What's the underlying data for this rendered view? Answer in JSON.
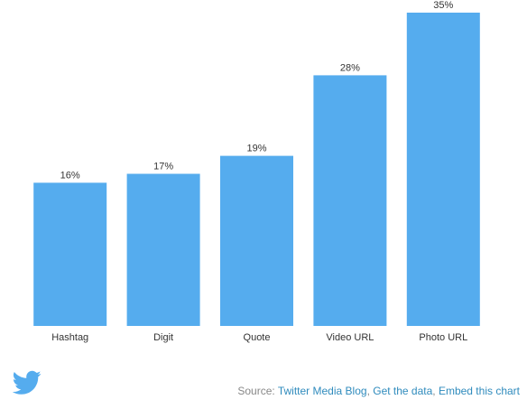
{
  "chart_data": {
    "type": "bar",
    "categories": [
      "Hashtag",
      "Digit",
      "Quote",
      "Video URL",
      "Photo URL"
    ],
    "values": [
      16,
      17,
      19,
      28,
      35
    ],
    "value_labels": [
      "16%",
      "17%",
      "19%",
      "28%",
      "35%"
    ],
    "ylim": [
      0,
      35
    ],
    "grid": false,
    "bar_color": "#55acee"
  },
  "footer": {
    "source_prefix": "Source:",
    "links": [
      {
        "label": "Twitter Media Blog"
      },
      {
        "label": "Get the data"
      },
      {
        "label": "Embed this chart"
      }
    ],
    "separator": ", ",
    "logo_icon": "twitter-bird-icon",
    "logo_color": "#55acee",
    "link_color": "#2f8bbd"
  }
}
